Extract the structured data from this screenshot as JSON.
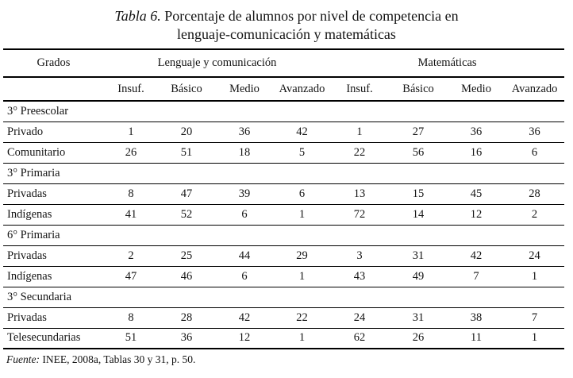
{
  "title": {
    "label_italic": "Tabla 6.",
    "line1_rest": " Porcentaje de alumnos por nivel de competencia en",
    "line2": "lenguaje-comunicación y matemáticas"
  },
  "table": {
    "grados_header": "Grados",
    "group_headers": [
      "Lenguaje y comunicación",
      "Matemáticas"
    ],
    "sub_headers": [
      "Insuf.",
      "Básico",
      "Medio",
      "Avanzado",
      "Insuf.",
      "Básico",
      "Medio",
      "Avanzado"
    ],
    "sections": [
      {
        "label": "3° Preescolar",
        "rows": [
          {
            "label": "Privado",
            "values": [
              1,
              20,
              36,
              42,
              1,
              27,
              36,
              36
            ]
          },
          {
            "label": "Comunitario",
            "values": [
              26,
              51,
              18,
              5,
              22,
              56,
              16,
              6
            ]
          }
        ]
      },
      {
        "label": "3° Primaria",
        "rows": [
          {
            "label": "Privadas",
            "values": [
              8,
              47,
              39,
              6,
              13,
              15,
              45,
              28
            ]
          },
          {
            "label": "Indígenas",
            "values": [
              41,
              52,
              6,
              1,
              72,
              14,
              12,
              2
            ]
          }
        ]
      },
      {
        "label": "6° Primaria",
        "rows": [
          {
            "label": "Privadas",
            "values": [
              2,
              25,
              44,
              29,
              3,
              31,
              42,
              24
            ]
          },
          {
            "label": "Indígenas",
            "values": [
              47,
              46,
              6,
              1,
              43,
              49,
              7,
              1
            ]
          }
        ]
      },
      {
        "label": "3° Secundaria",
        "rows": [
          {
            "label": "Privadas",
            "values": [
              8,
              28,
              42,
              22,
              24,
              31,
              38,
              7
            ]
          },
          {
            "label": "Telesecundarias",
            "values": [
              51,
              36,
              12,
              1,
              62,
              26,
              11,
              1
            ]
          }
        ]
      }
    ]
  },
  "footer": {
    "source_italic": "Fuente:",
    "source_rest": " INEE, 2008a, Tablas 30 y 31, p. 50."
  }
}
